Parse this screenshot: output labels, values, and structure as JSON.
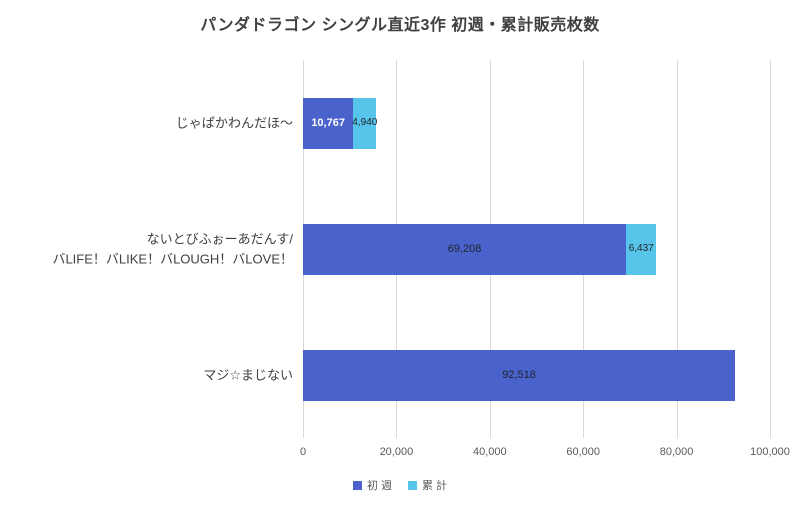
{
  "chart_data": {
    "type": "bar",
    "orientation": "horizontal",
    "stacked": true,
    "title": "パンダドラゴン シングル直近3作 初週・累計販売枚数",
    "categories": [
      "じゃぱかわんだほ～",
      "ないとびふぉーあだんす/ バLIFE！バLIKE！バLOUGH！バLOVE！",
      "マジ☆まじない"
    ],
    "category_lines": [
      [
        "じゃぱかわんだほ～"
      ],
      [
        "ないとびふぉーあだんす/",
        "バLIFE！バLIKE！バLOUGH！バLOVE！"
      ],
      [
        "マジ☆まじない"
      ]
    ],
    "series": [
      {
        "name": "初 週",
        "color": "#4a62cc",
        "values": [
          10767,
          69208,
          92518
        ],
        "data_labels": [
          "10,767",
          "69,208",
          "92,518"
        ],
        "label_colors": [
          "#ffffff",
          "#21242e",
          "#21242e"
        ]
      },
      {
        "name": "累 計",
        "color": "#57c5e9",
        "values": [
          4940,
          6437,
          null
        ],
        "data_labels": [
          "4,940",
          "6,437",
          ""
        ],
        "label_colors": [
          "#21242e",
          "#21242e",
          "#21242e"
        ]
      }
    ],
    "xlim": [
      0,
      100000
    ],
    "x_ticks": [
      {
        "value": 0,
        "label": "0"
      },
      {
        "value": 20000,
        "label": "20,000"
      },
      {
        "value": 40000,
        "label": "40,000"
      },
      {
        "value": 60000,
        "label": "60,000"
      },
      {
        "value": 80000,
        "label": "80,000"
      },
      {
        "value": 100000,
        "label": "100,000"
      }
    ],
    "grid": true,
    "legend_position": "bottom"
  },
  "colors": {
    "first_week": "#4a62cc",
    "cumulative": "#57c5e9",
    "gridline": "#d9d9d9",
    "axis_text": "#595959",
    "title_text": "#3f3f3f",
    "category_text": "#3f3f3f",
    "background": "#ffffff"
  }
}
